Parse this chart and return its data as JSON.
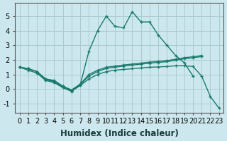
{
  "xlabel": "Humidex (Indice chaleur)",
  "bg_color": "#cce8ee",
  "grid_color": "#aacccc",
  "line_color": "#1a7a6e",
  "xlim": [
    -0.5,
    23.5
  ],
  "ylim": [
    -1.6,
    5.9
  ],
  "xticks": [
    0,
    1,
    2,
    3,
    4,
    5,
    6,
    7,
    8,
    9,
    10,
    11,
    12,
    13,
    14,
    15,
    16,
    17,
    18,
    19,
    20,
    21,
    22,
    23
  ],
  "yticks": [
    -1,
    0,
    1,
    2,
    3,
    4,
    5
  ],
  "series1_x": [
    0,
    1,
    2,
    3,
    4,
    5,
    6,
    7,
    8,
    9,
    10,
    11,
    12,
    13,
    14,
    15,
    16,
    17,
    18,
    19,
    20
  ],
  "series1_y": [
    1.5,
    1.4,
    1.2,
    0.7,
    0.6,
    0.2,
    -0.1,
    0.3,
    2.6,
    4.0,
    5.0,
    4.3,
    4.2,
    5.3,
    4.6,
    4.6,
    3.7,
    3.0,
    2.3,
    1.8,
    0.9
  ],
  "series2_x": [
    0,
    1,
    2,
    3,
    4,
    5,
    6,
    7,
    8,
    9,
    10,
    11,
    12,
    13,
    14,
    15,
    16,
    17,
    18,
    19,
    20,
    21
  ],
  "series2_y": [
    1.5,
    1.4,
    1.2,
    0.7,
    0.55,
    0.2,
    -0.05,
    0.35,
    1.0,
    1.3,
    1.5,
    1.58,
    1.65,
    1.72,
    1.78,
    1.85,
    1.9,
    1.95,
    2.05,
    2.15,
    2.22,
    2.3
  ],
  "series3_x": [
    0,
    1,
    2,
    3,
    4,
    5,
    6,
    7,
    8,
    9,
    10,
    11,
    12,
    13,
    14,
    15,
    16,
    17,
    18,
    19,
    20,
    21
  ],
  "series3_y": [
    1.5,
    1.4,
    1.2,
    0.65,
    0.5,
    0.15,
    -0.1,
    0.3,
    0.9,
    1.2,
    1.42,
    1.5,
    1.58,
    1.65,
    1.71,
    1.78,
    1.83,
    1.88,
    1.98,
    2.08,
    2.15,
    2.23
  ],
  "series4_x": [
    0,
    1,
    2,
    3,
    4,
    5,
    6,
    7,
    8,
    9,
    10,
    11,
    12,
    13,
    14,
    15,
    16,
    17,
    18,
    19,
    20,
    21,
    22,
    23
  ],
  "series4_y": [
    1.5,
    1.3,
    1.1,
    0.6,
    0.45,
    0.1,
    -0.15,
    0.25,
    0.7,
    1.0,
    1.2,
    1.3,
    1.35,
    1.4,
    1.45,
    1.5,
    1.52,
    1.55,
    1.6,
    1.6,
    1.55,
    0.9,
    -0.5,
    -1.3
  ],
  "font_size_xlabel": 8.5,
  "font_size_ticks": 7.0
}
